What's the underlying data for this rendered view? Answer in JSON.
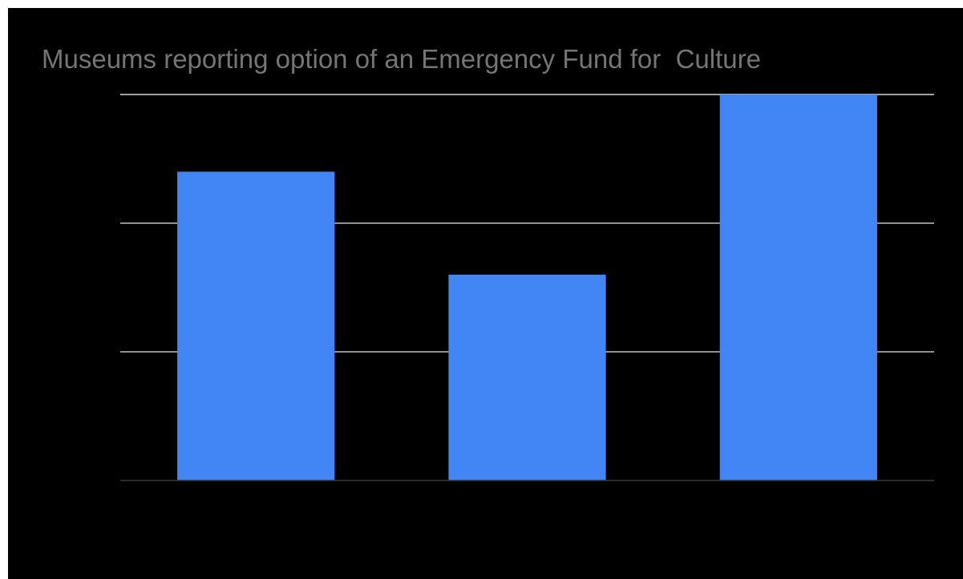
{
  "chart_data": {
    "type": "bar",
    "title": "Museums reporting option of an Emergency Fund for  Culture",
    "xlabel": "",
    "ylabel": "",
    "categories": [
      "",
      "",
      ""
    ],
    "values": [
      2.4,
      1.6,
      3.0
    ],
    "ylim": [
      0,
      3
    ],
    "grid": true,
    "legend": "none",
    "colors": {
      "background": "#000000",
      "bar": "#4285F4",
      "title": "#757575",
      "gridline": "#FFFFFF",
      "baseline": "#333333"
    }
  }
}
